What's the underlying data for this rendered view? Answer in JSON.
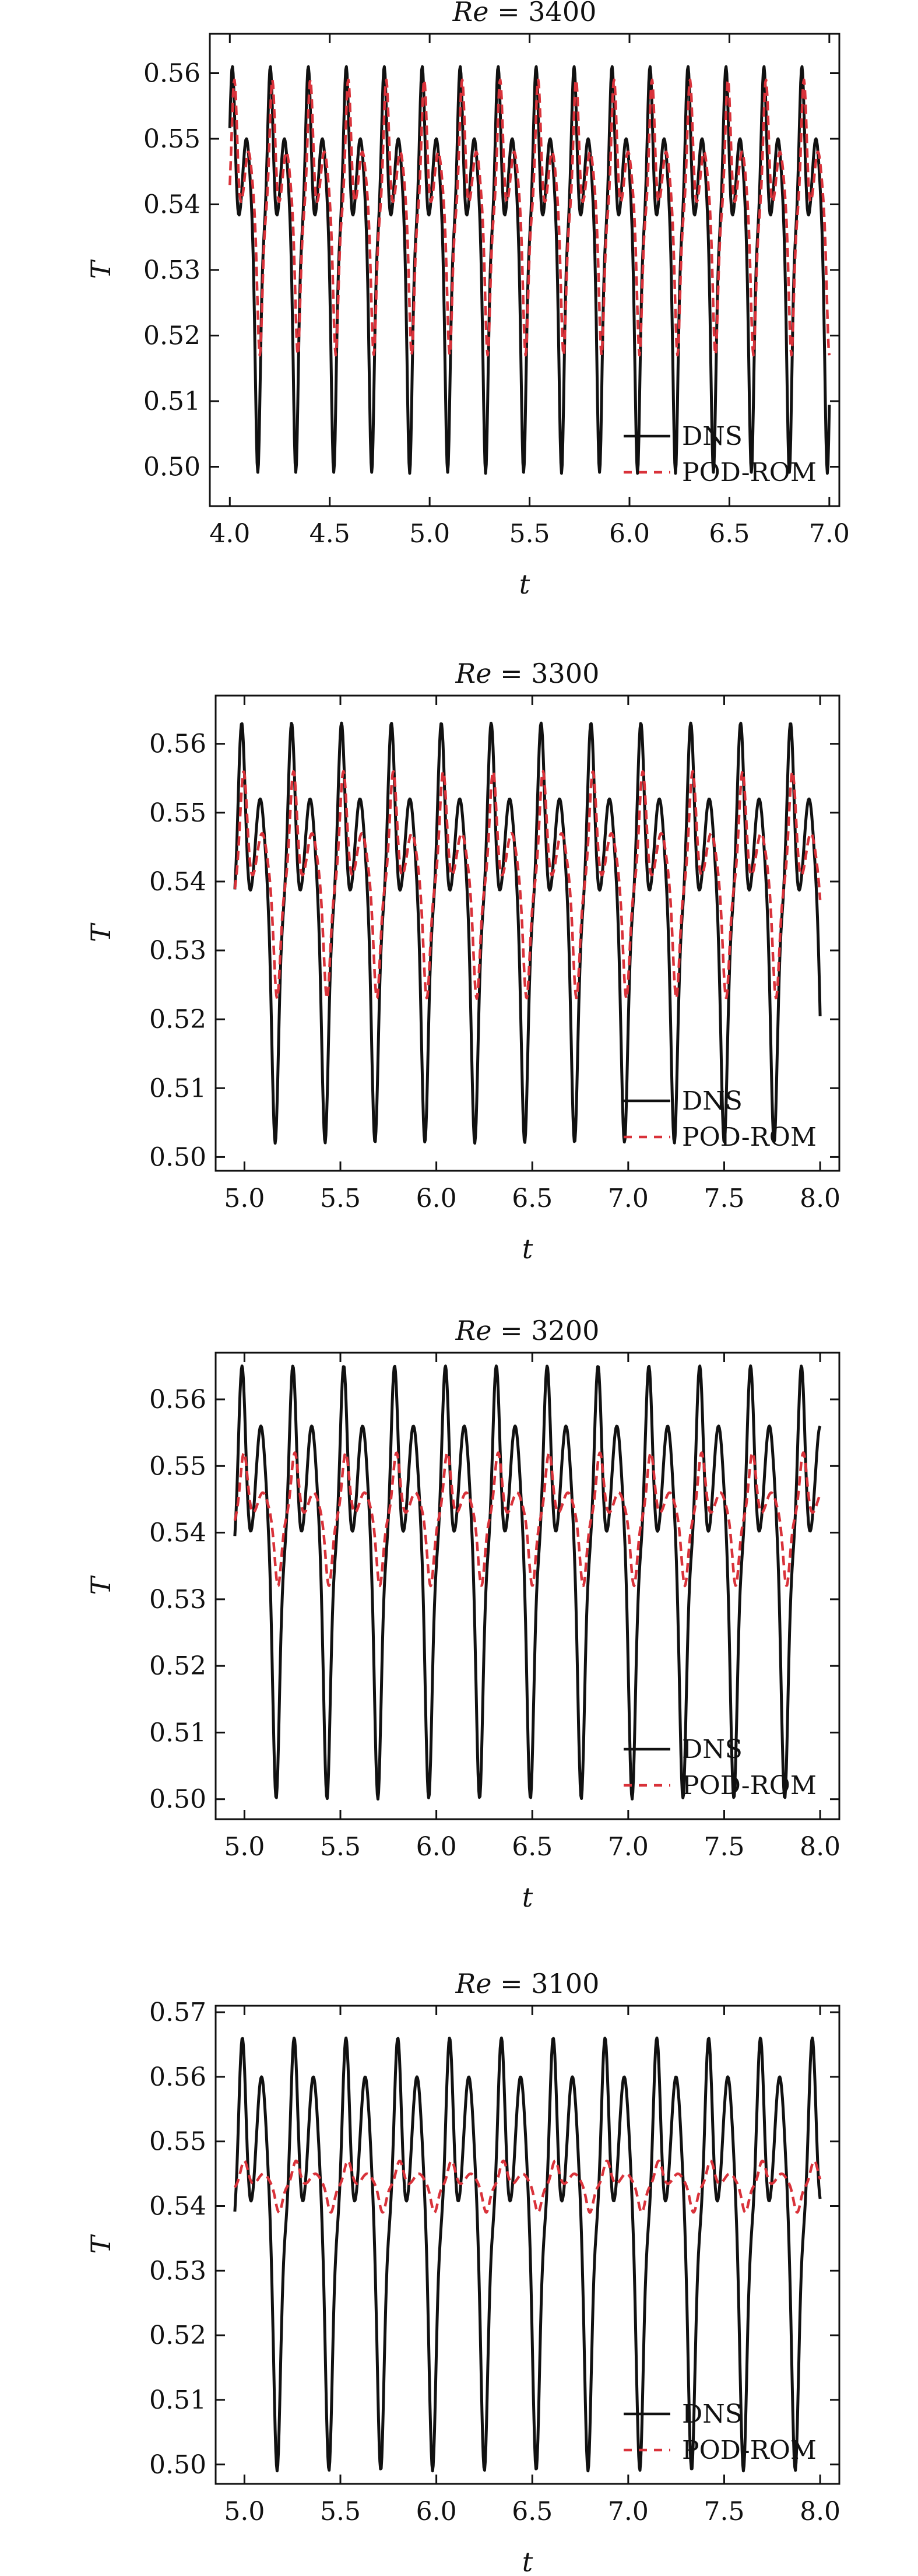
{
  "chart_data": [
    {
      "type": "line",
      "title_prefix": "Re",
      "title_value": "3400",
      "xlabel": "t",
      "ylabel": "T",
      "xlim": [
        3.9,
        7.05
      ],
      "ylim": [
        0.494,
        0.566
      ],
      "xticks": [
        "4.0",
        "4.5",
        "5.0",
        "5.5",
        "6.0",
        "6.5",
        "7.0"
      ],
      "yticks": [
        "0.50",
        "0.51",
        "0.52",
        "0.53",
        "0.54",
        "0.55",
        "0.56"
      ],
      "legend_position": "bottom-right",
      "t_start": 4.0,
      "t_end": 7.0,
      "series": [
        {
          "name": "DNS",
          "color": "#111111",
          "dash": "solid",
          "period": 0.19,
          "mean": 0.535,
          "amp_low": 0.036,
          "amp_high": 0.026,
          "mid": 0.55
        },
        {
          "name": "POD-ROM",
          "color": "#d9323a",
          "dash": "dashed",
          "period": 0.19,
          "mean": 0.538,
          "amp_low": 0.021,
          "amp_high": 0.021,
          "mid": 0.548
        }
      ]
    },
    {
      "type": "line",
      "title_prefix": "Re",
      "title_value": "3300",
      "xlabel": "t",
      "ylabel": "T",
      "xlim": [
        4.85,
        8.1
      ],
      "ylim": [
        0.498,
        0.567
      ],
      "xticks": [
        "5.0",
        "5.5",
        "6.0",
        "6.5",
        "7.0",
        "7.5",
        "8.0"
      ],
      "yticks": [
        "0.50",
        "0.51",
        "0.52",
        "0.53",
        "0.54",
        "0.55",
        "0.56"
      ],
      "legend_position": "bottom-right",
      "t_start": 4.95,
      "t_end": 8.0,
      "series": [
        {
          "name": "DNS",
          "color": "#111111",
          "dash": "solid",
          "period": 0.26,
          "mean": 0.535,
          "amp_low": 0.033,
          "amp_high": 0.028,
          "mid": 0.552
        },
        {
          "name": "POD-ROM",
          "color": "#d9323a",
          "dash": "dashed",
          "period": 0.26,
          "mean": 0.539,
          "amp_low": 0.016,
          "amp_high": 0.017,
          "mid": 0.547
        }
      ]
    },
    {
      "type": "line",
      "title_prefix": "Re",
      "title_value": "3200",
      "xlabel": "t",
      "ylabel": "T",
      "xlim": [
        4.85,
        8.1
      ],
      "ylim": [
        0.497,
        0.567
      ],
      "xticks": [
        "5.0",
        "5.5",
        "6.0",
        "6.5",
        "7.0",
        "7.5",
        "8.0"
      ],
      "yticks": [
        "0.50",
        "0.51",
        "0.52",
        "0.53",
        "0.54",
        "0.55",
        "0.56"
      ],
      "legend_position": "bottom-right",
      "t_start": 4.95,
      "t_end": 8.0,
      "series": [
        {
          "name": "DNS",
          "color": "#111111",
          "dash": "solid",
          "period": 0.265,
          "mean": 0.536,
          "amp_low": 0.036,
          "amp_high": 0.029,
          "mid": 0.556
        },
        {
          "name": "POD-ROM",
          "color": "#d9323a",
          "dash": "dashed",
          "period": 0.265,
          "mean": 0.542,
          "amp_low": 0.01,
          "amp_high": 0.01,
          "mid": 0.546
        }
      ]
    },
    {
      "type": "line",
      "title_prefix": "Re",
      "title_value": "3100",
      "xlabel": "t",
      "ylabel": "T",
      "xlim": [
        4.85,
        8.1
      ],
      "ylim": [
        0.497,
        0.571
      ],
      "xticks": [
        "5.0",
        "5.5",
        "6.0",
        "6.5",
        "7.0",
        "7.5",
        "8.0"
      ],
      "yticks": [
        "0.50",
        "0.51",
        "0.52",
        "0.53",
        "0.54",
        "0.55",
        "0.56",
        "0.57"
      ],
      "legend_position": "bottom-right",
      "t_start": 4.95,
      "t_end": 8.0,
      "series": [
        {
          "name": "DNS",
          "color": "#111111",
          "dash": "solid",
          "period": 0.27,
          "mean": 0.536,
          "amp_low": 0.037,
          "amp_high": 0.03,
          "mid": 0.56
        },
        {
          "name": "POD-ROM",
          "color": "#d9323a",
          "dash": "dashed",
          "period": 0.27,
          "mean": 0.543,
          "amp_low": 0.004,
          "amp_high": 0.004,
          "mid": 0.545
        }
      ]
    }
  ]
}
